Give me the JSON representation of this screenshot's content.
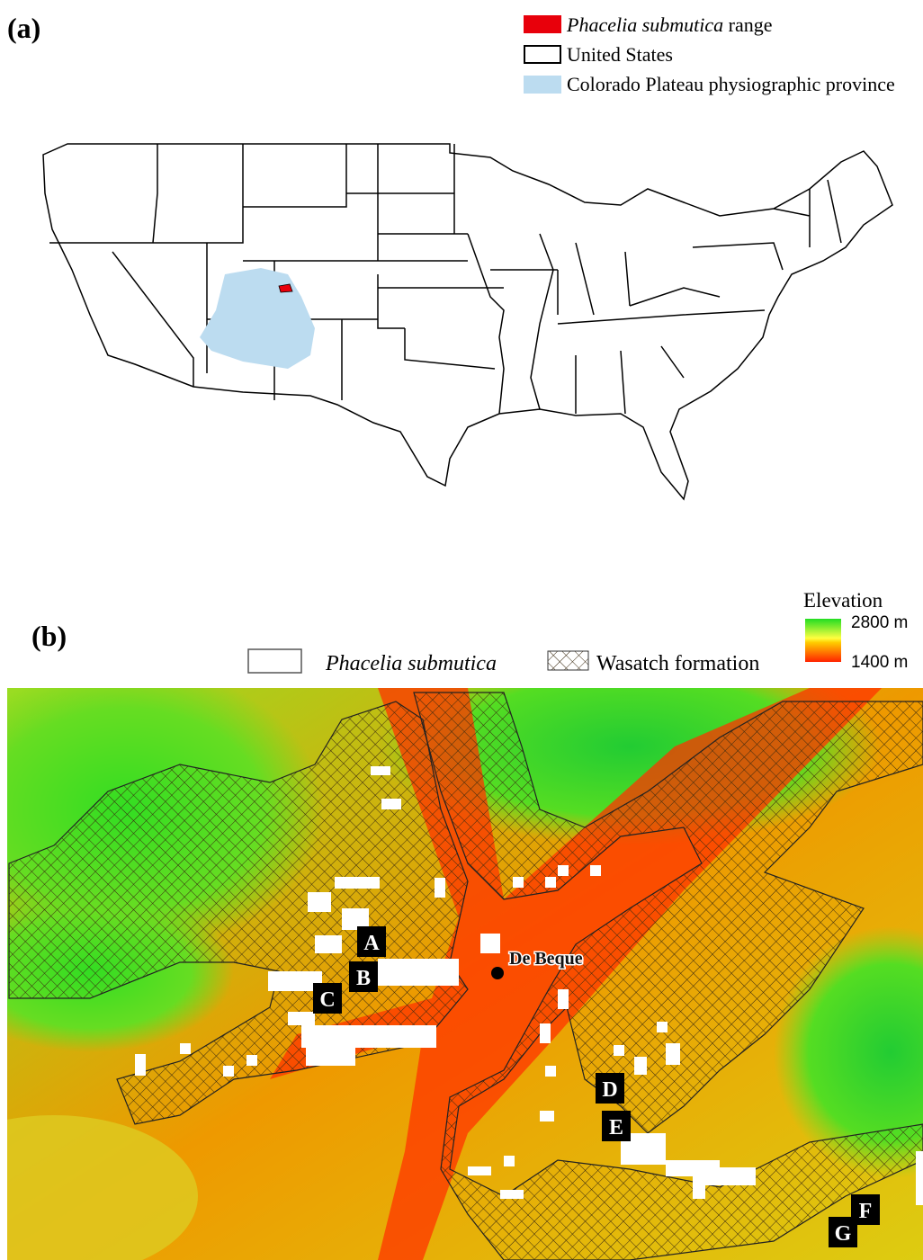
{
  "panel_a": {
    "label": "(a)",
    "legend": [
      {
        "name": "Phacelia submutica",
        "suffix": "range"
      },
      {
        "name": "United States"
      },
      {
        "name": "Colorado Plateau physiographic province"
      }
    ]
  },
  "panel_b": {
    "label": "(b)",
    "legend": [
      {
        "name": "Phacelia submutica"
      },
      {
        "name": "Wasatch formation"
      }
    ],
    "elevation": {
      "title": "Elevation",
      "high": "2800 m",
      "low": "1400 m"
    },
    "town": "De Beque",
    "sites": [
      "A",
      "B",
      "C",
      "D",
      "E",
      "F",
      "G"
    ]
  }
}
